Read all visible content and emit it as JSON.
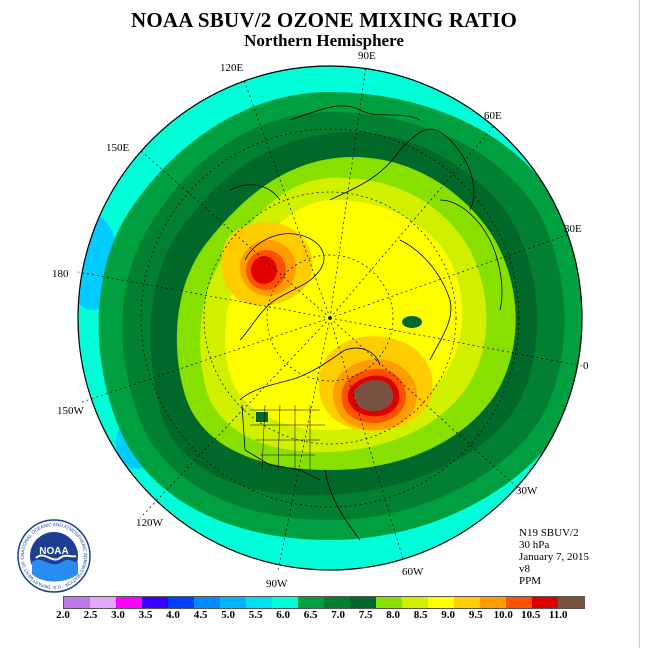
{
  "title": "NOAA SBUV/2 OZONE MIXING RATIO",
  "subtitle": "Northern Hemisphere",
  "longitude_labels": {
    "lon_90e": "90E",
    "lon_60e": "60E",
    "lon_30e": "30E",
    "lon_0": "0",
    "lon_30w": "30W",
    "lon_60w": "60W",
    "lon_90w": "90W",
    "lon_120w": "120W",
    "lon_150w": "150W",
    "lon_180": "180",
    "lon_150e": "150E",
    "lon_120e": "120E"
  },
  "info": {
    "satellite": "N19 SBUV/2",
    "level": "30 hPa",
    "date": "January 7, 2015",
    "version": "v8",
    "units": "PPM"
  },
  "colorbar": {
    "ticks": [
      "2.0",
      "2.5",
      "3.0",
      "3.5",
      "4.0",
      "4.5",
      "5.0",
      "5.5",
      "6.0",
      "6.5",
      "7.0",
      "7.5",
      "8.0",
      "8.5",
      "9.0",
      "9.5",
      "10.0",
      "10.5",
      "11.0"
    ],
    "colors": [
      "#c07ae8",
      "#e0a8f8",
      "#ff00ff",
      "#3a00ff",
      "#0040ff",
      "#008cff",
      "#00b4ff",
      "#00e0f0",
      "#00ffd8",
      "#00a040",
      "#008030",
      "#006828",
      "#88e000",
      "#d0f000",
      "#ffff00",
      "#ffcc00",
      "#ff9c00",
      "#ff5000",
      "#e00000",
      "#7a5040"
    ]
  },
  "logo": {
    "text": "NOAA",
    "ring_text": "NATIONAL OCEANIC AND ATMOSPHERIC ADMINISTRATION · U.S. DEPARTMENT OF COMMERCE"
  },
  "map_colors": {
    "ocean_cyan": "#00ffd8",
    "light_blue": "#00ccff",
    "green_dark": "#008030",
    "green_darker": "#006828",
    "green_mid": "#00a040",
    "lime": "#88e000",
    "yellow_green": "#d0f000",
    "yellow": "#ffff00",
    "gold": "#ffcc00",
    "orange": "#ff9c00",
    "red_orange": "#ff5000",
    "red": "#e00000",
    "brown": "#7a5040"
  }
}
